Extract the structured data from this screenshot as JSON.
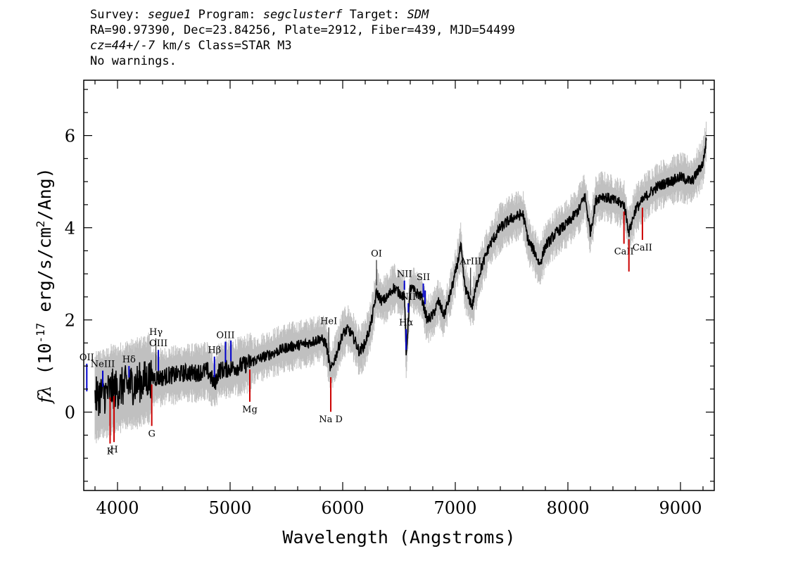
{
  "header": {
    "survey_label": "Survey:",
    "survey": "segue1",
    "program_label": "Program:",
    "program": "segclusterf",
    "target_label": "Target:",
    "target": "SDM",
    "line2": "RA=90.97390, Dec=23.84256, Plate=2912, Fiber=439, MJD=54499",
    "cz": "cz=44+/-7",
    "line3_rest": "km/s Class=STAR M3",
    "line4": "No warnings."
  },
  "chart_data": {
    "type": "line",
    "xlabel": "Wavelength (Angstroms)",
    "ylabel": "fλ (10^-17 erg/s/cm^2/Ang)",
    "xlim": [
      3700,
      9300
    ],
    "ylim": [
      -1.7,
      7.2
    ],
    "x_ticks": [
      4000,
      5000,
      6000,
      7000,
      8000,
      9000
    ],
    "y_ticks": [
      0,
      2,
      4,
      6
    ],
    "colors": {
      "flux": "#000000",
      "error": "#c0c0c0",
      "emission": "#0000cc",
      "absorption": "#cc0000",
      "other": "#000000"
    },
    "series": [
      {
        "name": "",
        "x": [
          3800,
          3850,
          3900,
          3950,
          4000,
          4050,
          4100,
          4150,
          4200,
          4250,
          4300,
          4350,
          4400,
          4450,
          4500,
          4600,
          4700,
          4800,
          4862,
          4900,
          5000,
          5100,
          5200,
          5300,
          5400,
          5500,
          5600,
          5700,
          5800,
          5850,
          5893,
          5950,
          6000,
          6050,
          6100,
          6150,
          6200,
          6250,
          6280,
          6300,
          6350,
          6400,
          6450,
          6500,
          6550,
          6563,
          6600,
          6650,
          6700,
          6750,
          6800,
          6850,
          6900,
          6950,
          7000,
          7050,
          7080,
          7100,
          7150,
          7200,
          7300,
          7400,
          7500,
          7600,
          7650,
          7700,
          7750,
          7800,
          7900,
          8000,
          8100,
          8150,
          8200,
          8250,
          8300,
          8400,
          8500,
          8542,
          8600,
          8700,
          8800,
          8900,
          9000,
          9100,
          9150,
          9200,
          9230
        ],
        "y": [
          0.3,
          0.4,
          0.4,
          0.5,
          0.5,
          0.55,
          0.6,
          0.6,
          0.65,
          0.7,
          0.75,
          0.75,
          0.75,
          0.8,
          0.8,
          0.85,
          0.85,
          0.9,
          0.6,
          0.9,
          0.95,
          1.0,
          1.1,
          1.2,
          1.3,
          1.4,
          1.45,
          1.5,
          1.6,
          1.5,
          0.9,
          1.3,
          1.7,
          1.8,
          1.6,
          1.3,
          1.5,
          1.9,
          2.3,
          2.6,
          2.4,
          2.5,
          2.7,
          2.6,
          2.5,
          1.2,
          2.7,
          2.6,
          2.5,
          2.0,
          2.1,
          2.4,
          2.1,
          2.5,
          3.0,
          3.6,
          2.8,
          2.6,
          2.3,
          2.9,
          3.6,
          4.0,
          4.2,
          4.3,
          3.7,
          3.5,
          3.2,
          3.6,
          3.9,
          4.1,
          4.4,
          4.7,
          3.9,
          4.6,
          4.7,
          4.6,
          4.5,
          3.9,
          4.4,
          4.7,
          4.9,
          5.0,
          5.1,
          5.0,
          5.2,
          5.4,
          5.9
        ]
      }
    ],
    "lines": [
      {
        "label": "OII",
        "x": 3727,
        "type": "emission"
      },
      {
        "label": "NeIII",
        "x": 3869,
        "type": "emission"
      },
      {
        "label": "Hδ",
        "x": 4102,
        "type": "emission"
      },
      {
        "label": "Hγ",
        "x": 4341,
        "type": "other"
      },
      {
        "label": "OIII",
        "x": 4363,
        "type": "emission"
      },
      {
        "label": "Hβ",
        "x": 4861,
        "type": "emission"
      },
      {
        "label": "OIII",
        "x": 4959,
        "type": "emission"
      },
      {
        "label": "OIII",
        "x": 5007,
        "type": "emission"
      },
      {
        "label": "HeI",
        "x": 5876,
        "type": "other"
      },
      {
        "label": "OI",
        "x": 6300,
        "type": "other"
      },
      {
        "label": "NII",
        "x": 6548,
        "type": "emission"
      },
      {
        "label": "Hα",
        "x": 6563,
        "type": "emission"
      },
      {
        "label": "NII",
        "x": 6583,
        "type": "emission"
      },
      {
        "label": "SII",
        "x": 6716,
        "type": "emission"
      },
      {
        "label": "SII",
        "x": 6731,
        "type": "emission"
      },
      {
        "label": "ArIII",
        "x": 7136,
        "type": "other"
      },
      {
        "label": "K",
        "x": 3934,
        "type": "absorption"
      },
      {
        "label": "H",
        "x": 3969,
        "type": "absorption"
      },
      {
        "label": "G",
        "x": 4304,
        "type": "absorption"
      },
      {
        "label": "Mg",
        "x": 5175,
        "type": "absorption"
      },
      {
        "label": "Na D",
        "x": 5894,
        "type": "absorption"
      },
      {
        "label": "CaII",
        "x": 8498,
        "type": "absorption"
      },
      {
        "label": "CaII",
        "x": 8542,
        "type": "absorption"
      },
      {
        "label": "CaII",
        "x": 8662,
        "type": "absorption"
      }
    ]
  }
}
